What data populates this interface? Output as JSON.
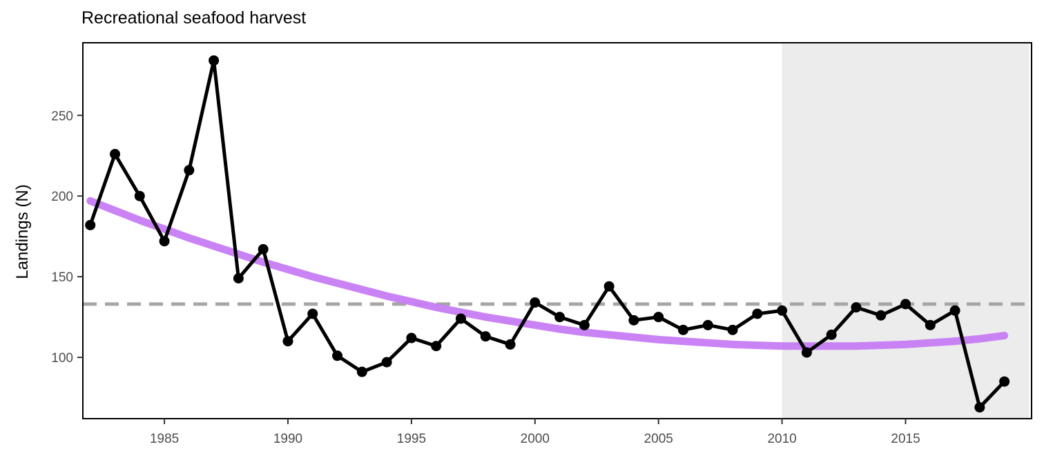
{
  "chart_data": {
    "type": "line",
    "title": "Recreational seafood harvest",
    "xlabel": "",
    "ylabel": "Landings (N)",
    "xlim": [
      1981.7,
      2020.1
    ],
    "ylim": [
      62,
      295
    ],
    "x_ticks": [
      1985,
      1990,
      1995,
      2000,
      2005,
      2010,
      2015
    ],
    "y_ticks": [
      100,
      150,
      200,
      250
    ],
    "grid": false,
    "shaded_region": {
      "x_start": 2010,
      "x_end": 2020,
      "color": "#ececec"
    },
    "reference_line": {
      "y": 133,
      "style": "dashed",
      "color": "#a6a6a6"
    },
    "series": [
      {
        "x": [
          1982,
          1983,
          1984,
          1985,
          1986,
          1987,
          1988,
          1989,
          1990,
          1991,
          1992,
          1993,
          1994,
          1995,
          1996,
          1997,
          1998,
          1999,
          2000,
          2001,
          2002,
          2003,
          2004,
          2005,
          2006,
          2007,
          2008,
          2009,
          2010,
          2011,
          2012,
          2013,
          2014,
          2015,
          2016,
          2017,
          2018,
          2019
        ],
        "values": [
          182,
          226,
          200,
          172,
          216,
          284,
          149,
          167,
          110,
          127,
          101,
          91,
          97,
          112,
          107,
          124,
          113,
          108,
          134,
          125,
          120,
          144,
          123,
          125,
          117,
          120,
          117,
          127,
          129,
          103,
          114,
          131,
          126,
          133,
          120,
          129,
          69,
          85
        ],
        "color": "#000000"
      },
      {
        "x": [
          1982,
          1983,
          1984,
          1985,
          1986,
          1987,
          1988,
          1989,
          1990,
          1991,
          1992,
          1993,
          1994,
          1995,
          1996,
          1997,
          1998,
          1999,
          2000,
          2001,
          2002,
          2003,
          2004,
          2005,
          2006,
          2007,
          2008,
          2009,
          2010,
          2011,
          2012,
          2013,
          2014,
          2015,
          2016,
          2017,
          2018,
          2019
        ],
        "values": [
          197,
          191,
          185,
          179.5,
          174,
          169,
          164,
          159,
          154.5,
          150,
          146,
          142,
          138,
          134.5,
          131,
          128,
          125,
          122.5,
          120,
          117.5,
          115.5,
          114,
          112.5,
          111,
          110,
          109,
          108,
          107.5,
          107,
          107,
          107,
          107,
          107.5,
          108,
          109,
          110,
          111.5,
          113.5
        ],
        "color": "#c77cf4"
      }
    ]
  }
}
